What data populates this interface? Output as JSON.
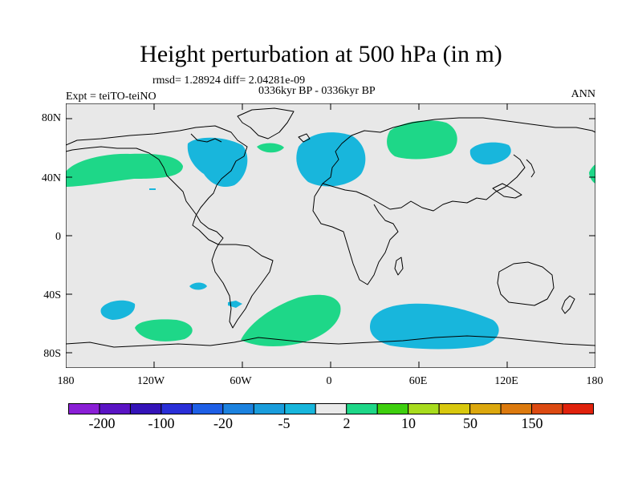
{
  "title": "Height perturbation at 500 hPa (in m)",
  "stats_line": "rmsd= 1.28924 diff= 2.04281e-09",
  "expt_label": "Expt = teiTO-teiNO",
  "period_label": "0336kyr BP - 0336kyr BP",
  "season_label": "ANN",
  "lat_ticks": [
    "80N",
    "40N",
    "0",
    "40S",
    "80S"
  ],
  "lon_ticks": [
    "180",
    "120W",
    "60W",
    "0",
    "60E",
    "120E",
    "180"
  ],
  "colorbar": {
    "labels": [
      "-200",
      "-100",
      "-20",
      "-5",
      "2",
      "10",
      "50",
      "150"
    ],
    "colors": [
      "#8a1fd6",
      "#5a14c4",
      "#3413b8",
      "#2a2fd8",
      "#1e5fe6",
      "#1c82df",
      "#1a9ddc",
      "#18b6dc",
      "#eaeaea",
      "#1ed788",
      "#3ecf0e",
      "#a8dc1e",
      "#d8c80e",
      "#dca80e",
      "#dc7a0e",
      "#dc4a12",
      "#e0220c"
    ]
  },
  "colors": {
    "land_background": "#e8e8e8",
    "positive_anomaly": "#1ed788",
    "negative_anomaly": "#18b6dc"
  }
}
